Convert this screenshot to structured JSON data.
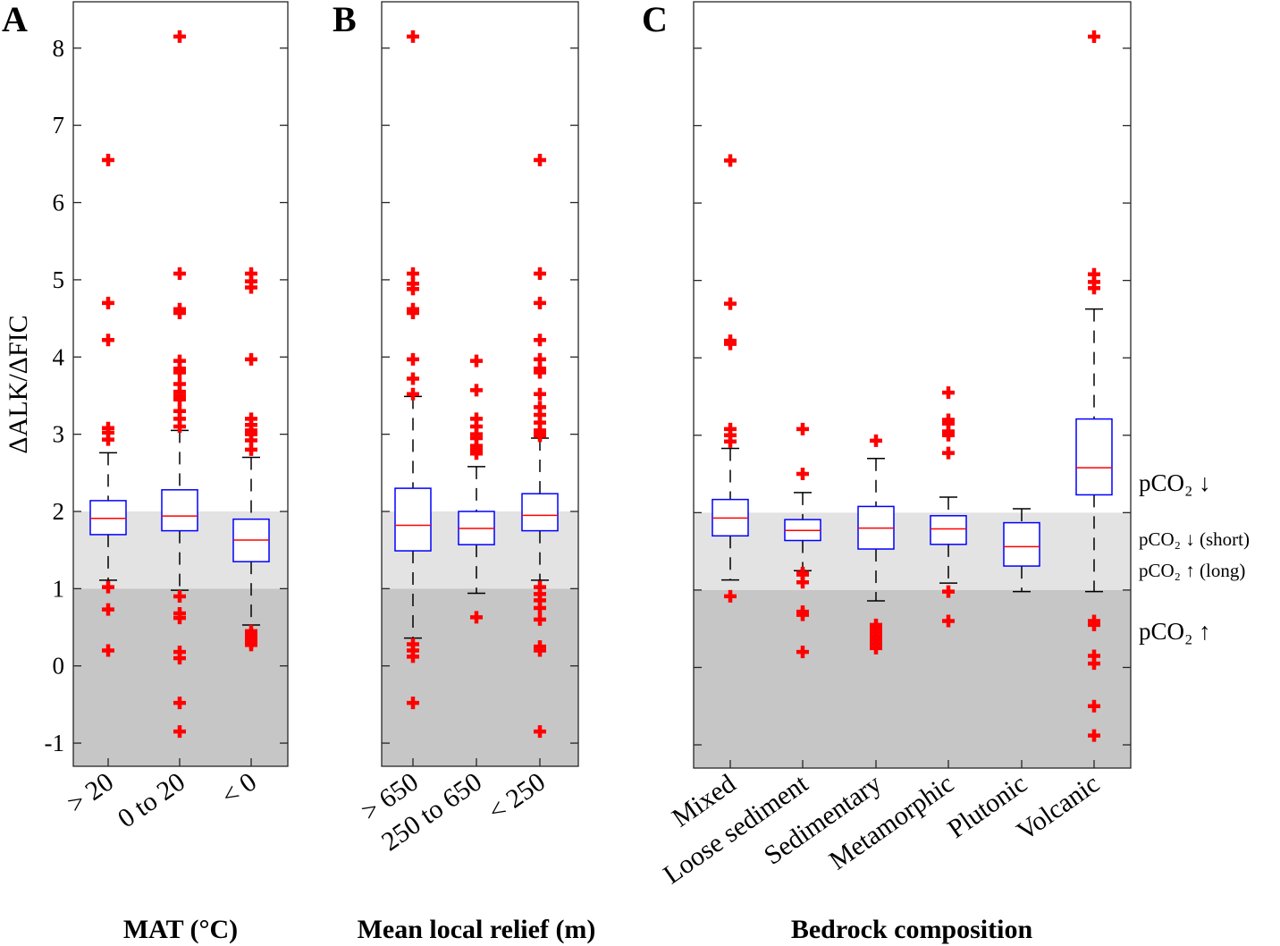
{
  "ylabel": "ΔALK/ΔFIC",
  "annotations": {
    "decrease": "pCO₂ ↓",
    "short": "pCO₂ ↓ (short)",
    "long": "pCO₂ ↑ (long)",
    "increase": "pCO₂ ↑"
  },
  "colors": {
    "box": "#0000ff",
    "median": "#ff0000",
    "outlier": "#ff0000",
    "whisker": "#000000",
    "band_light": "#e3e3e3",
    "band_dark": "#c6c6c6"
  },
  "bands": [
    {
      "from": 1,
      "to": 2,
      "color": "#e3e3e3"
    },
    {
      "from": -1.3,
      "to": 1,
      "color": "#c6c6c6"
    }
  ],
  "chart_data": [
    {
      "type": "box",
      "panel_letter": "A",
      "title": "MAT (°C)",
      "ylim": [
        -1.3,
        8.6
      ],
      "yticks": [
        -1,
        0,
        1,
        2,
        3,
        4,
        5,
        6,
        7,
        8
      ],
      "show_ytick_labels": true,
      "categories": [
        "> 20",
        "0 to 20",
        "< 0"
      ],
      "boxes": [
        {
          "q1": 1.7,
          "median": 1.91,
          "q3": 2.14,
          "whisker_low": 1.11,
          "whisker_high": 2.76,
          "outliers": [
            6.55,
            4.7,
            4.22,
            3.08,
            3.02,
            2.93,
            1.02,
            0.73,
            0.2
          ]
        },
        {
          "q1": 1.75,
          "median": 1.94,
          "q3": 2.28,
          "whisker_low": 0.98,
          "whisker_high": 3.05,
          "outliers": [
            8.15,
            5.08,
            4.62,
            4.57,
            3.95,
            3.85,
            3.8,
            3.65,
            3.55,
            3.5,
            3.45,
            3.3,
            3.2,
            3.1,
            0.9,
            0.68,
            0.62,
            0.18,
            0.1,
            -0.48,
            -0.85
          ]
        },
        {
          "q1": 1.35,
          "median": 1.63,
          "q3": 1.9,
          "whisker_low": 0.53,
          "whisker_high": 2.7,
          "outliers": [
            5.08,
            4.98,
            4.9,
            3.97,
            3.2,
            3.12,
            3.05,
            3.0,
            2.92,
            2.8,
            0.45,
            0.4,
            0.37,
            0.33,
            0.3,
            0.27
          ]
        }
      ]
    },
    {
      "type": "box",
      "panel_letter": "B",
      "title": "Mean local relief (m)",
      "ylim": [
        -1.3,
        8.6
      ],
      "yticks": [
        -1,
        0,
        1,
        2,
        3,
        4,
        5,
        6,
        7,
        8
      ],
      "show_ytick_labels": false,
      "categories": [
        "> 650",
        "250 to 650",
        "< 250"
      ],
      "boxes": [
        {
          "q1": 1.49,
          "median": 1.82,
          "q3": 2.3,
          "whisker_low": 0.36,
          "whisker_high": 3.49,
          "outliers": [
            8.15,
            5.08,
            4.95,
            4.88,
            4.62,
            4.57,
            3.97,
            3.72,
            3.52,
            0.28,
            0.2,
            0.12,
            -0.48
          ]
        },
        {
          "q1": 1.57,
          "median": 1.78,
          "q3": 2.0,
          "whisker_low": 0.94,
          "whisker_high": 2.58,
          "outliers": [
            3.95,
            3.57,
            3.2,
            3.1,
            3.0,
            2.95,
            2.85,
            2.8,
            2.75,
            0.63
          ]
        },
        {
          "q1": 1.75,
          "median": 1.95,
          "q3": 2.23,
          "whisker_low": 1.11,
          "whisker_high": 2.95,
          "outliers": [
            6.55,
            5.08,
            4.7,
            4.22,
            3.97,
            3.85,
            3.8,
            3.52,
            3.35,
            3.25,
            3.15,
            3.05,
            3.0,
            2.98,
            1.02,
            0.93,
            0.85,
            0.75,
            0.6,
            0.25,
            0.2,
            -0.85
          ]
        }
      ]
    },
    {
      "type": "box",
      "panel_letter": "C",
      "title": "Bedrock composition",
      "ylim": [
        -1.3,
        8.6
      ],
      "yticks": [
        -1,
        0,
        1,
        2,
        3,
        4,
        5,
        6,
        7,
        8
      ],
      "show_ytick_labels": false,
      "categories": [
        "Mixed",
        "Loose sediment",
        "Sedimentary",
        "Metamorphic",
        "Plutonic",
        "Volcanic"
      ],
      "boxes": [
        {
          "q1": 1.7,
          "median": 1.93,
          "q3": 2.17,
          "whisker_low": 1.13,
          "whisker_high": 2.83,
          "outliers": [
            6.55,
            4.7,
            4.22,
            4.18,
            3.08,
            3.0,
            2.92,
            0.92
          ]
        },
        {
          "q1": 1.64,
          "median": 1.77,
          "q3": 1.91,
          "whisker_low": 1.25,
          "whisker_high": 2.26,
          "outliers": [
            3.08,
            2.5,
            1.22,
            1.2,
            1.1,
            0.72,
            0.68,
            0.2
          ]
        },
        {
          "q1": 1.53,
          "median": 1.8,
          "q3": 2.08,
          "whisker_low": 0.86,
          "whisker_high": 2.7,
          "outliers": [
            2.93,
            0.55,
            0.5,
            0.45,
            0.4,
            0.35,
            0.3,
            0.25
          ]
        },
        {
          "q1": 1.59,
          "median": 1.79,
          "q3": 1.96,
          "whisker_low": 1.09,
          "whisker_high": 2.2,
          "outliers": [
            3.55,
            3.2,
            3.15,
            3.05,
            3.0,
            2.77,
            0.98,
            0.6
          ]
        },
        {
          "q1": 1.31,
          "median": 1.56,
          "q3": 1.87,
          "whisker_low": 0.98,
          "whisker_high": 2.05,
          "outliers": []
        },
        {
          "q1": 2.23,
          "median": 2.58,
          "q3": 3.21,
          "whisker_low": 0.98,
          "whisker_high": 4.63,
          "outliers": [
            8.15,
            5.08,
            4.98,
            4.9,
            0.6,
            0.55,
            0.15,
            0.05,
            -0.5,
            -0.88
          ]
        }
      ]
    }
  ]
}
